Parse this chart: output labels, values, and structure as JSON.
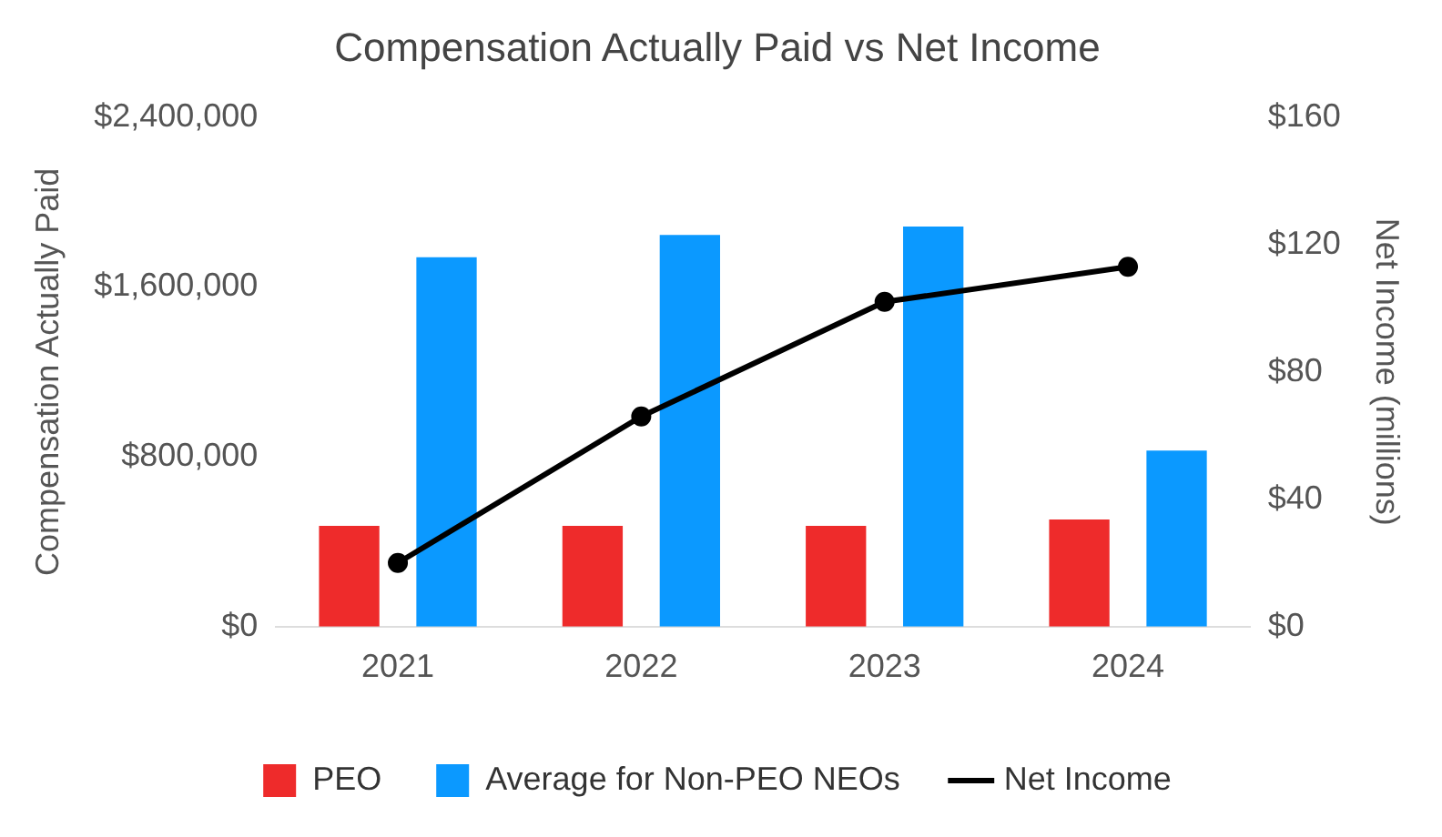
{
  "chart_data": {
    "type": "bar",
    "title": "Compensation Actually Paid vs Net Income",
    "ylabel": "Compensation Actually Paid",
    "y2label": "Net Income (millions)",
    "categories": [
      "2021",
      "2022",
      "2023",
      "2024"
    ],
    "series": [
      {
        "name": "PEO",
        "color": "#ee2b2b",
        "values": [
          475000,
          475000,
          475000,
          505000
        ]
      },
      {
        "name": "Average for Non-PEO NEOs",
        "color": "#0b99ff",
        "values": [
          1740000,
          1845000,
          1885000,
          830000
        ]
      },
      {
        "name": "Net Income",
        "type": "line",
        "axis": "y2",
        "color": "#000000",
        "values": [
          20,
          66,
          102,
          113
        ]
      }
    ],
    "ylim": [
      0,
      2400000
    ],
    "yticks": [
      {
        "value": 0,
        "label": "$0"
      },
      {
        "value": 800000,
        "label": "$800,000"
      },
      {
        "value": 1600000,
        "label": "$1,600,000"
      },
      {
        "value": 2400000,
        "label": "$2,400,000"
      }
    ],
    "y2lim": [
      0,
      160
    ],
    "y2ticks": [
      {
        "value": 0,
        "label": "$0"
      },
      {
        "value": 40,
        "label": "$40"
      },
      {
        "value": 80,
        "label": "$80"
      },
      {
        "value": 120,
        "label": "$120"
      },
      {
        "value": 160,
        "label": "$160"
      }
    ],
    "grid": false,
    "legend": "bottom",
    "marker": "circle"
  }
}
